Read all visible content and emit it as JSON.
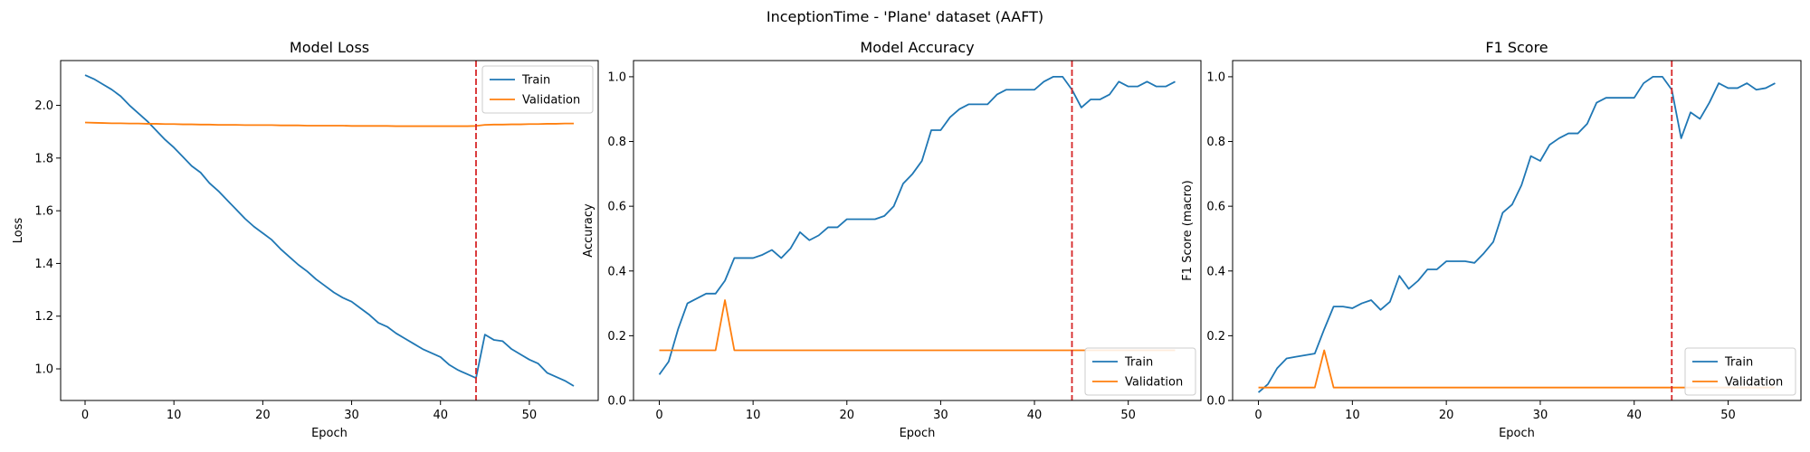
{
  "figure": {
    "suptitle": "InceptionTime - 'Plane' dataset (AAFT)"
  },
  "colors": {
    "train": "#1f77b4",
    "validation": "#ff7f0e",
    "marker_line": "#d62728"
  },
  "chart_data": [
    {
      "type": "line",
      "title": "Model Loss",
      "xlabel": "Epoch",
      "ylabel": "Loss",
      "xlim": [
        -2.75,
        57.75
      ],
      "ylim": [
        0.88,
        2.17
      ],
      "xticks": [
        0,
        10,
        20,
        30,
        40,
        50
      ],
      "yticks": [
        1.0,
        1.2,
        1.4,
        1.6,
        1.8,
        2.0
      ],
      "ytick_labels": [
        "1.0",
        "1.2",
        "1.4",
        "1.6",
        "1.8",
        "2.0"
      ],
      "legend": "top-right",
      "vline_x": 44,
      "x": [
        0,
        1,
        2,
        3,
        4,
        5,
        6,
        7,
        8,
        9,
        10,
        11,
        12,
        13,
        14,
        15,
        16,
        17,
        18,
        19,
        20,
        21,
        22,
        23,
        24,
        25,
        26,
        27,
        28,
        29,
        30,
        31,
        32,
        33,
        34,
        35,
        36,
        37,
        38,
        39,
        40,
        41,
        42,
        43,
        44,
        45,
        46,
        47,
        48,
        49,
        50,
        51,
        52,
        53,
        54,
        55
      ],
      "series": [
        {
          "name": "Train",
          "values": [
            2.115,
            2.1,
            2.08,
            2.06,
            2.035,
            2.0,
            1.97,
            1.94,
            1.905,
            1.87,
            1.84,
            1.805,
            1.77,
            1.745,
            1.705,
            1.675,
            1.64,
            1.605,
            1.57,
            1.54,
            1.515,
            1.49,
            1.455,
            1.425,
            1.395,
            1.37,
            1.34,
            1.315,
            1.29,
            1.27,
            1.255,
            1.23,
            1.205,
            1.175,
            1.16,
            1.135,
            1.115,
            1.095,
            1.075,
            1.06,
            1.045,
            1.015,
            0.995,
            0.98,
            0.965,
            1.13,
            1.11,
            1.105,
            1.075,
            1.055,
            1.035,
            1.02,
            0.985,
            0.97,
            0.955,
            0.935
          ]
        },
        {
          "name": "Validation",
          "values": [
            1.935,
            1.934,
            1.933,
            1.932,
            1.932,
            1.931,
            1.931,
            1.93,
            1.93,
            1.929,
            1.929,
            1.928,
            1.928,
            1.927,
            1.927,
            1.926,
            1.926,
            1.926,
            1.925,
            1.925,
            1.925,
            1.925,
            1.924,
            1.924,
            1.924,
            1.923,
            1.923,
            1.923,
            1.923,
            1.923,
            1.922,
            1.922,
            1.922,
            1.922,
            1.922,
            1.921,
            1.921,
            1.921,
            1.921,
            1.921,
            1.921,
            1.921,
            1.921,
            1.921,
            1.922,
            1.926,
            1.927,
            1.927,
            1.928,
            1.928,
            1.929,
            1.929,
            1.93,
            1.93,
            1.931,
            1.931
          ]
        }
      ]
    },
    {
      "type": "line",
      "title": "Model Accuracy",
      "xlabel": "Epoch",
      "ylabel": "Accuracy",
      "xlim": [
        -2.75,
        57.75
      ],
      "ylim": [
        0.0,
        1.05
      ],
      "xticks": [
        0,
        10,
        20,
        30,
        40,
        50
      ],
      "yticks": [
        0.0,
        0.2,
        0.4,
        0.6,
        0.8,
        1.0
      ],
      "ytick_labels": [
        "0.0",
        "0.2",
        "0.4",
        "0.6",
        "0.8",
        "1.0"
      ],
      "legend": "bottom-right",
      "vline_x": 44,
      "x": [
        0,
        1,
        2,
        3,
        4,
        5,
        6,
        7,
        8,
        9,
        10,
        11,
        12,
        13,
        14,
        15,
        16,
        17,
        18,
        19,
        20,
        21,
        22,
        23,
        24,
        25,
        26,
        27,
        28,
        29,
        30,
        31,
        32,
        33,
        34,
        35,
        36,
        37,
        38,
        39,
        40,
        41,
        42,
        43,
        44,
        45,
        46,
        47,
        48,
        49,
        50,
        51,
        52,
        53,
        54,
        55
      ],
      "series": [
        {
          "name": "Train",
          "values": [
            0.08,
            0.12,
            0.22,
            0.3,
            0.315,
            0.33,
            0.33,
            0.37,
            0.44,
            0.44,
            0.44,
            0.45,
            0.465,
            0.44,
            0.47,
            0.52,
            0.495,
            0.51,
            0.535,
            0.535,
            0.56,
            0.56,
            0.56,
            0.56,
            0.57,
            0.6,
            0.67,
            0.7,
            0.74,
            0.835,
            0.835,
            0.875,
            0.9,
            0.915,
            0.915,
            0.915,
            0.945,
            0.96,
            0.96,
            0.96,
            0.96,
            0.985,
            1.0,
            1.0,
            0.96,
            0.905,
            0.93,
            0.93,
            0.945,
            0.985,
            0.97,
            0.97,
            0.985,
            0.97,
            0.97,
            0.985
          ]
        },
        {
          "name": "Validation",
          "values": [
            0.155,
            0.155,
            0.155,
            0.155,
            0.155,
            0.155,
            0.155,
            0.31,
            0.155,
            0.155,
            0.155,
            0.155,
            0.155,
            0.155,
            0.155,
            0.155,
            0.155,
            0.155,
            0.155,
            0.155,
            0.155,
            0.155,
            0.155,
            0.155,
            0.155,
            0.155,
            0.155,
            0.155,
            0.155,
            0.155,
            0.155,
            0.155,
            0.155,
            0.155,
            0.155,
            0.155,
            0.155,
            0.155,
            0.155,
            0.155,
            0.155,
            0.155,
            0.155,
            0.155,
            0.155,
            0.155,
            0.155,
            0.155,
            0.155,
            0.155,
            0.155,
            0.155,
            0.155,
            0.155,
            0.155,
            0.155
          ]
        }
      ]
    },
    {
      "type": "line",
      "title": "F1 Score",
      "xlabel": "Epoch",
      "ylabel": "F1 Score (macro)",
      "xlim": [
        -2.75,
        57.75
      ],
      "ylim": [
        0.0,
        1.05
      ],
      "xticks": [
        0,
        10,
        20,
        30,
        40,
        50
      ],
      "yticks": [
        0.0,
        0.2,
        0.4,
        0.6,
        0.8,
        1.0
      ],
      "ytick_labels": [
        "0.0",
        "0.2",
        "0.4",
        "0.6",
        "0.8",
        "1.0"
      ],
      "legend": "bottom-right",
      "vline_x": 44,
      "x": [
        0,
        1,
        2,
        3,
        4,
        5,
        6,
        7,
        8,
        9,
        10,
        11,
        12,
        13,
        14,
        15,
        16,
        17,
        18,
        19,
        20,
        21,
        22,
        23,
        24,
        25,
        26,
        27,
        28,
        29,
        30,
        31,
        32,
        33,
        34,
        35,
        36,
        37,
        38,
        39,
        40,
        41,
        42,
        43,
        44,
        45,
        46,
        47,
        48,
        49,
        50,
        51,
        52,
        53,
        54,
        55
      ],
      "series": [
        {
          "name": "Train",
          "values": [
            0.025,
            0.05,
            0.1,
            0.13,
            0.135,
            0.14,
            0.145,
            0.22,
            0.29,
            0.29,
            0.285,
            0.3,
            0.31,
            0.28,
            0.305,
            0.385,
            0.345,
            0.37,
            0.405,
            0.405,
            0.43,
            0.43,
            0.43,
            0.425,
            0.455,
            0.49,
            0.58,
            0.605,
            0.665,
            0.755,
            0.74,
            0.79,
            0.81,
            0.825,
            0.825,
            0.855,
            0.92,
            0.935,
            0.935,
            0.935,
            0.935,
            0.98,
            1.0,
            1.0,
            0.96,
            0.81,
            0.89,
            0.87,
            0.92,
            0.98,
            0.965,
            0.965,
            0.98,
            0.96,
            0.965,
            0.98
          ]
        },
        {
          "name": "Validation",
          "values": [
            0.04,
            0.04,
            0.04,
            0.04,
            0.04,
            0.04,
            0.04,
            0.155,
            0.04,
            0.04,
            0.04,
            0.04,
            0.04,
            0.04,
            0.04,
            0.04,
            0.04,
            0.04,
            0.04,
            0.04,
            0.04,
            0.04,
            0.04,
            0.04,
            0.04,
            0.04,
            0.04,
            0.04,
            0.04,
            0.04,
            0.04,
            0.04,
            0.04,
            0.04,
            0.04,
            0.04,
            0.04,
            0.04,
            0.04,
            0.04,
            0.04,
            0.04,
            0.04,
            0.04,
            0.04,
            0.04,
            0.04,
            0.04,
            0.04,
            0.04,
            0.04,
            0.04,
            0.04,
            0.04,
            0.04,
            0.04
          ]
        }
      ]
    }
  ]
}
